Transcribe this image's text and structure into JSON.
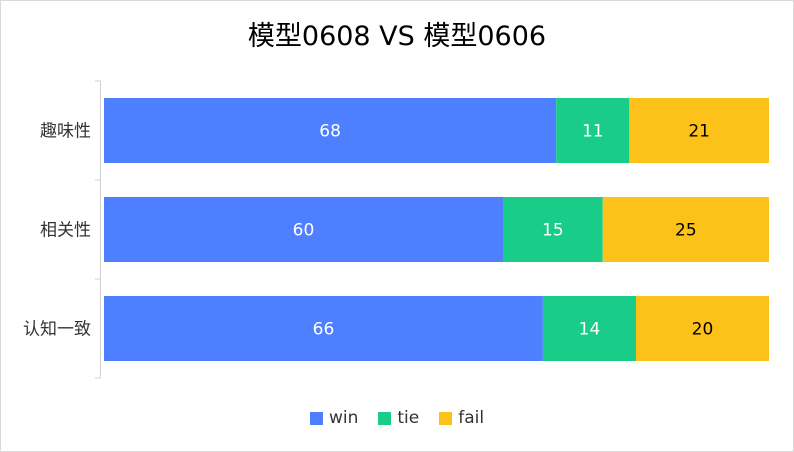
{
  "chart_data": {
    "type": "bar",
    "orientation": "horizontal",
    "stacked": true,
    "title": "模型0608 VS 模型0606",
    "categories": [
      "趣味性",
      "相关性",
      "认知一致"
    ],
    "series": [
      {
        "name": "win",
        "color": "#4e7ffe",
        "label_color": "#ffffff",
        "values": [
          68,
          60,
          66
        ]
      },
      {
        "name": "tie",
        "color": "#19cc88",
        "label_color": "#ffffff",
        "values": [
          11,
          15,
          14
        ]
      },
      {
        "name": "fail",
        "color": "#fdc21a",
        "label_color": "#000000",
        "values": [
          21,
          25,
          20
        ]
      }
    ],
    "xlim": [
      0,
      100
    ],
    "grid": false,
    "legend_position": "bottom"
  }
}
